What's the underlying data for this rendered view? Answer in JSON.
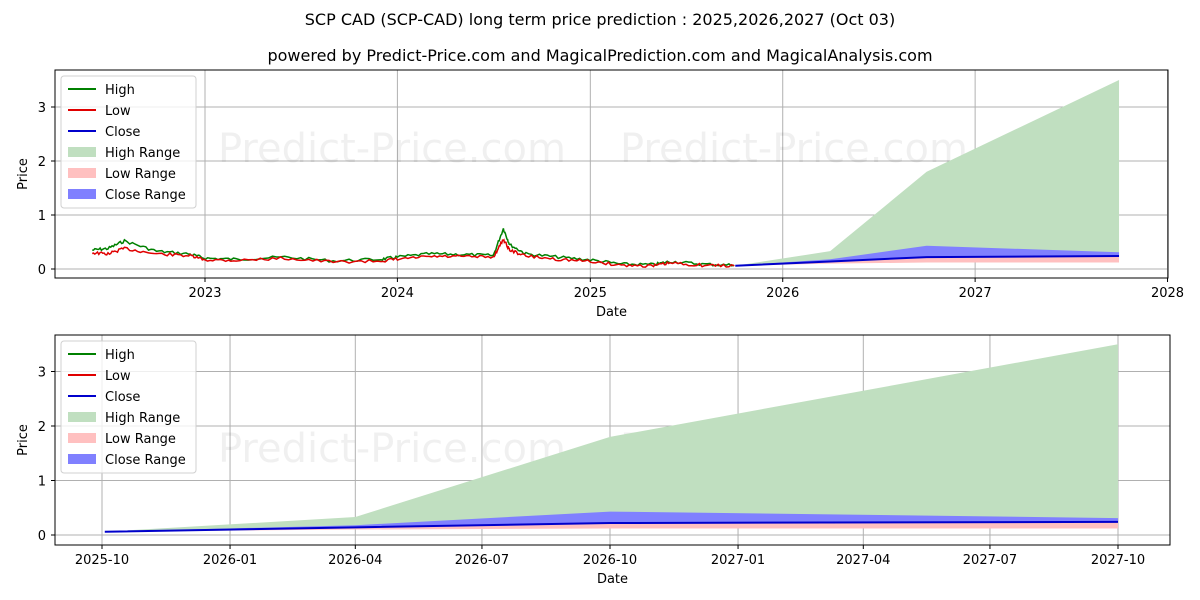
{
  "header": {
    "title": "SCP CAD (SCP-CAD) long term price prediction : 2025,2026,2027 (Oct 03)",
    "subtitle": "powered by Predict-Price.com and MagicalPrediction.com and MagicalAnalysis.com"
  },
  "watermark": "Predict-Price.com",
  "colors": {
    "high": "#008000",
    "low": "#e00000",
    "close": "#0000cc",
    "high_range": "#c0dfc0",
    "low_range": "#ffc0c0",
    "close_range": "#8080ff"
  },
  "legend": [
    {
      "label": "High",
      "kind": "line",
      "color": "#008000"
    },
    {
      "label": "Low",
      "kind": "line",
      "color": "#e00000"
    },
    {
      "label": "Close",
      "kind": "line",
      "color": "#0000cc"
    },
    {
      "label": "High Range",
      "kind": "patch",
      "color": "#c0dfc0"
    },
    {
      "label": "Low Range",
      "kind": "patch",
      "color": "#ffc0c0"
    },
    {
      "label": "Close Range",
      "kind": "patch",
      "color": "#8080ff"
    }
  ],
  "chart_data": [
    {
      "type": "line",
      "title": "SCP CAD (SCP-CAD) long term price prediction : 2025,2026,2027 (Oct 03)",
      "xlabel": "Date",
      "ylabel": "Price",
      "x_ticks": [
        "2023",
        "2024",
        "2025",
        "2026",
        "2027",
        "2028"
      ],
      "y_ticks": [
        0,
        1,
        2,
        3
      ],
      "ylim": [
        -0.15,
        3.7
      ],
      "grid": true,
      "legend_position": "upper left",
      "historical": {
        "x": [
          "2022-06",
          "2022-07",
          "2022-08",
          "2022-10",
          "2022-12",
          "2023-01",
          "2023-03",
          "2023-06",
          "2023-09",
          "2023-12",
          "2024-01",
          "2024-03",
          "2024-05",
          "2024-07",
          "2024-07-20",
          "2024-08",
          "2024-09",
          "2024-11",
          "2025-01",
          "2025-03",
          "2025-05",
          "2025-06",
          "2025-08",
          "2025-10"
        ],
        "high": [
          0.35,
          0.38,
          0.52,
          0.33,
          0.28,
          0.2,
          0.18,
          0.22,
          0.15,
          0.18,
          0.22,
          0.28,
          0.27,
          0.25,
          0.75,
          0.45,
          0.28,
          0.22,
          0.17,
          0.09,
          0.08,
          0.14,
          0.09,
          0.07
        ],
        "low": [
          0.3,
          0.28,
          0.38,
          0.28,
          0.25,
          0.17,
          0.16,
          0.2,
          0.13,
          0.15,
          0.18,
          0.23,
          0.23,
          0.22,
          0.55,
          0.35,
          0.24,
          0.18,
          0.14,
          0.07,
          0.06,
          0.11,
          0.07,
          0.06
        ]
      },
      "forecast": {
        "x": [
          "2025-10-03",
          "2026-04",
          "2026-10",
          "2027-10"
        ],
        "close": [
          0.06,
          0.14,
          0.22,
          0.24
        ],
        "high_range_top": [
          0.06,
          0.33,
          1.8,
          3.5
        ],
        "close_range_top": [
          0.06,
          0.18,
          0.43,
          0.31
        ],
        "low_range_bottom": [
          0.06,
          0.1,
          0.12,
          0.12
        ]
      }
    },
    {
      "type": "area",
      "xlabel": "Date",
      "ylabel": "Price",
      "x_ticks": [
        "2025-10",
        "2026-01",
        "2026-04",
        "2026-07",
        "2026-10",
        "2027-01",
        "2027-04",
        "2027-07",
        "2027-10"
      ],
      "y_ticks": [
        0,
        1,
        2,
        3
      ],
      "ylim": [
        -0.15,
        3.7
      ],
      "grid": true,
      "legend_position": "upper left",
      "series": [
        {
          "name": "Close",
          "x": [
            "2025-10-03",
            "2026-04",
            "2026-10",
            "2027-10"
          ],
          "values": [
            0.06,
            0.14,
            0.22,
            0.24
          ]
        },
        {
          "name": "High Range",
          "x": [
            "2025-10-03",
            "2026-04",
            "2026-10",
            "2027-10"
          ],
          "values": [
            0.06,
            0.33,
            1.8,
            3.5
          ]
        },
        {
          "name": "Close Range",
          "x": [
            "2025-10-03",
            "2026-04",
            "2026-10",
            "2027-10"
          ],
          "values": [
            0.06,
            0.18,
            0.43,
            0.31
          ]
        },
        {
          "name": "Low Range",
          "x": [
            "2025-10-03",
            "2026-04",
            "2026-10",
            "2027-10"
          ],
          "values": [
            0.06,
            0.1,
            0.12,
            0.12
          ]
        }
      ]
    }
  ]
}
